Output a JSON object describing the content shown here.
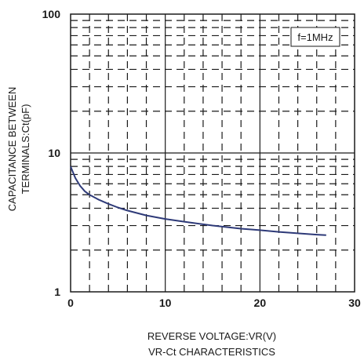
{
  "chart_data": {
    "type": "line",
    "title": "VR-Ct CHARACTERISTICS",
    "xlabel": "REVERSE VOLTAGE:VR(V)",
    "ylabel_lines": [
      "CAPACITANCE BETWEEN",
      "TERMINALS:Ct(pF)"
    ],
    "xlim": [
      0,
      30
    ],
    "ylim": [
      1,
      100
    ],
    "yscale": "log",
    "grid": true,
    "x_ticks": [
      0,
      10,
      20,
      30
    ],
    "x_tick_labels": [
      "0",
      "10",
      "20",
      "30"
    ],
    "y_ticks": [
      1,
      10,
      100
    ],
    "y_tick_labels": [
      "1",
      "10",
      "100"
    ],
    "annotation": "f=1MHz",
    "series": [
      {
        "color": "#2e3a78",
        "x": [
          0,
          0.5,
          1,
          1.5,
          2,
          3,
          4,
          5,
          6,
          8,
          10,
          12,
          15,
          18,
          20,
          22,
          24,
          26,
          27
        ],
        "y": [
          8.0,
          6.6,
          5.8,
          5.3,
          5.0,
          4.6,
          4.3,
          4.05,
          3.85,
          3.55,
          3.35,
          3.2,
          3.0,
          2.85,
          2.78,
          2.7,
          2.64,
          2.58,
          2.56
        ]
      }
    ]
  }
}
